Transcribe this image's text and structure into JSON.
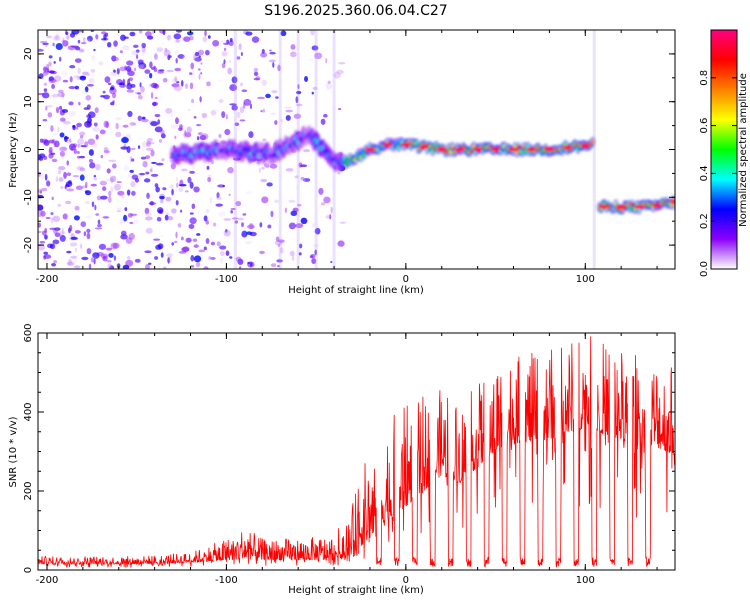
{
  "figure": {
    "title": "S196.2025.360.06.04.C27"
  },
  "chart_data": [
    {
      "type": "heatmap",
      "title": "S196.2025.360.06.04.C27",
      "xlabel": "Height of straight line (km)",
      "ylabel": "Frequency (Hz)",
      "xlim": [
        -205,
        150
      ],
      "ylim": [
        -25,
        25
      ],
      "x_ticks": [
        -200,
        -100,
        0,
        100
      ],
      "y_ticks": [
        -20,
        -10,
        0,
        10,
        20
      ],
      "ridge": {
        "description": "dominant spectral ridge (frequency vs height)",
        "x": [
          -125,
          -100,
          -75,
          -55,
          -45,
          -38,
          -30,
          -20,
          -10,
          0,
          20,
          50,
          80,
          104,
          108,
          120,
          135,
          150
        ],
        "y": [
          -1,
          0,
          -1,
          3,
          0,
          -3,
          -2,
          0,
          1,
          1,
          0,
          0,
          0,
          1,
          -12,
          -12,
          -12,
          -11
        ]
      },
      "noise_region_x": [
        -205,
        -35
      ],
      "colorbar": {
        "label": "Normalized spectral amplitude",
        "range": [
          0,
          1
        ],
        "ticks": [
          "0.0",
          "0.2",
          "0.4",
          "0.6",
          "0.8"
        ],
        "tick_values": [
          0.0,
          0.2,
          0.4,
          0.6,
          0.8
        ],
        "colormap": [
          "#ffffff",
          "#8b00ff",
          "#0000ff",
          "#00ffff",
          "#00ff00",
          "#ffff00",
          "#ff8000",
          "#ff0000",
          "#ff0080"
        ]
      }
    },
    {
      "type": "line",
      "title": "",
      "xlabel": "Height of straight line (km)",
      "ylabel": "SNR (10 * v/v)",
      "xlim": [
        -205,
        150
      ],
      "ylim": [
        0,
        600
      ],
      "x_ticks": [
        -200,
        -100,
        0,
        100
      ],
      "y_ticks": [
        0,
        200,
        400,
        600
      ],
      "series_color": "#ff0000",
      "envelope": {
        "x": [
          -205,
          -150,
          -120,
          -100,
          -90,
          -80,
          -60,
          -40,
          -30,
          -25,
          -20,
          -10,
          0,
          10,
          20,
          30,
          40,
          50,
          60,
          80,
          100,
          120,
          140,
          150
        ],
        "baseline": [
          15,
          15,
          18,
          25,
          30,
          25,
          25,
          25,
          40,
          60,
          80,
          120,
          160,
          200,
          240,
          220,
          260,
          300,
          320,
          330,
          360,
          330,
          310,
          290
        ],
        "peak": [
          35,
          35,
          45,
          80,
          110,
          80,
          80,
          90,
          160,
          260,
          300,
          380,
          420,
          440,
          460,
          430,
          470,
          550,
          540,
          560,
          600,
          560,
          540,
          520
        ]
      },
      "dropouts": {
        "x": [
          -15,
          -5,
          5,
          15,
          25,
          35,
          45,
          55,
          65,
          75,
          85,
          95,
          105,
          115,
          125,
          135
        ],
        "value": 8
      }
    }
  ]
}
